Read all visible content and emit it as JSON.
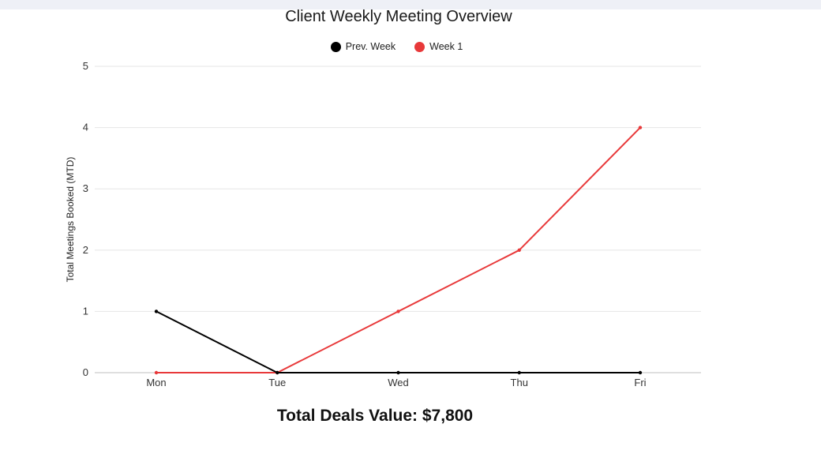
{
  "colors": {
    "prev_week": "#000000",
    "week1": "#e8393a",
    "grid": "#e6e6e6",
    "axis": "#bfbfbf"
  },
  "summary": {
    "deals_label": "Total Deals Value: $7,800"
  },
  "chart_data": {
    "type": "line",
    "title": "Client Weekly Meeting Overview",
    "xlabel": "",
    "ylabel": "Total Meetings Booked (MTD)",
    "categories": [
      "Mon",
      "Tue",
      "Wed",
      "Thu",
      "Fri"
    ],
    "ylim": [
      0,
      5
    ],
    "yticks": [
      0,
      1,
      2,
      3,
      4,
      5
    ],
    "grid": true,
    "legend_position": "top-center",
    "series": [
      {
        "name": "Prev. Week",
        "color": "#000000",
        "values": [
          1,
          0,
          0,
          0,
          0
        ]
      },
      {
        "name": "Week 1",
        "color": "#e8393a",
        "values": [
          0,
          0,
          1,
          2,
          4
        ]
      }
    ]
  }
}
